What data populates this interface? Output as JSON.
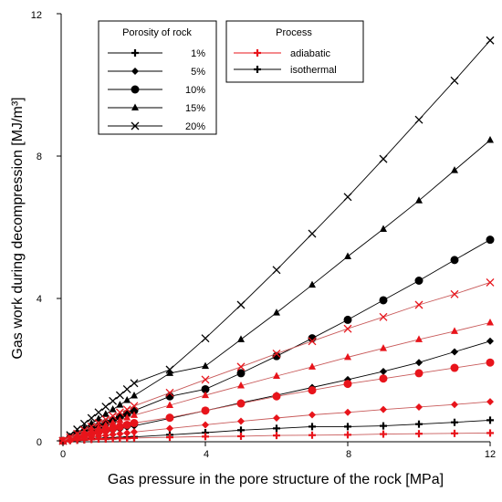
{
  "chart_data": {
    "type": "line",
    "xlabel": "Gas pressure in the pore structure of the rock [MPa]",
    "ylabel": "Gas work during decompression [MJ/m³]",
    "xlim": [
      0,
      12
    ],
    "ylim": [
      0,
      12
    ],
    "x_ticks": [
      "0",
      "4",
      "8",
      "12"
    ],
    "y_ticks": [
      "0",
      "4",
      "8",
      "12"
    ],
    "x": [
      0,
      0.2,
      0.4,
      0.6,
      0.8,
      1.0,
      1.2,
      1.4,
      1.6,
      1.8,
      2.0,
      3,
      4,
      5,
      6,
      7,
      8,
      9,
      10,
      11,
      12
    ],
    "porosity_legend": {
      "title": "Porosity of rock",
      "entries": [
        {
          "label": "1%",
          "marker": "plus"
        },
        {
          "label": "5%",
          "marker": "diamond"
        },
        {
          "label": "10%",
          "marker": "circle"
        },
        {
          "label": "15%",
          "marker": "triangle"
        },
        {
          "label": "20%",
          "marker": "cross"
        }
      ]
    },
    "process_legend": {
      "title": "Process",
      "entries": [
        {
          "label": "adiabatic",
          "color": "#e8141b"
        },
        {
          "label": "isothermal",
          "color": "#000000"
        }
      ]
    },
    "series": [
      {
        "porosity": "1%",
        "process": "isothermal",
        "marker": "plus",
        "color": "#000000",
        "values": [
          0,
          0.01,
          0.02,
          0.03,
          0.05,
          0.06,
          0.07,
          0.08,
          0.09,
          0.1,
          0.11,
          0.17,
          0.23,
          0.3,
          0.35,
          0.4,
          0.4,
          0.42,
          0.47,
          0.52,
          0.58
        ]
      },
      {
        "porosity": "5%",
        "process": "isothermal",
        "marker": "diamond",
        "color": "#000000",
        "values": [
          0,
          0.04,
          0.08,
          0.12,
          0.17,
          0.21,
          0.25,
          0.29,
          0.33,
          0.38,
          0.42,
          0.63,
          0.85,
          1.07,
          1.28,
          1.5,
          1.72,
          1.95,
          2.2,
          2.5,
          2.8
        ]
      },
      {
        "porosity": "10%",
        "process": "isothermal",
        "marker": "circle",
        "color": "#000000",
        "values": [
          0,
          0.08,
          0.16,
          0.24,
          0.33,
          0.41,
          0.5,
          0.58,
          0.67,
          0.76,
          0.85,
          1.25,
          1.45,
          1.9,
          2.38,
          2.88,
          3.4,
          3.95,
          4.5,
          5.08,
          5.65
        ]
      },
      {
        "porosity": "15%",
        "process": "isothermal",
        "marker": "triangle",
        "color": "#000000",
        "values": [
          0,
          0.12,
          0.24,
          0.36,
          0.49,
          0.62,
          0.75,
          0.88,
          1.01,
          1.14,
          1.27,
          1.9,
          2.1,
          2.85,
          3.6,
          4.38,
          5.18,
          5.95,
          6.75,
          7.6,
          8.45
        ]
      },
      {
        "porosity": "20%",
        "process": "isothermal",
        "marker": "cross",
        "color": "#000000",
        "values": [
          0,
          0.16,
          0.32,
          0.48,
          0.64,
          0.8,
          0.96,
          1.12,
          1.28,
          1.45,
          1.62,
          2.0,
          2.88,
          3.82,
          4.8,
          5.82,
          6.85,
          7.92,
          9.02,
          10.12,
          11.25
        ]
      },
      {
        "porosity": "1%",
        "process": "adiabatic",
        "marker": "plus",
        "color": "#e8141b",
        "values": [
          0,
          0.01,
          0.02,
          0.03,
          0.04,
          0.05,
          0.05,
          0.06,
          0.07,
          0.07,
          0.08,
          0.1,
          0.12,
          0.13,
          0.15,
          0.16,
          0.17,
          0.19,
          0.2,
          0.21,
          0.22
        ]
      },
      {
        "porosity": "5%",
        "process": "adiabatic",
        "marker": "diamond",
        "color": "#e8141b",
        "values": [
          0,
          0.03,
          0.05,
          0.08,
          0.1,
          0.13,
          0.15,
          0.18,
          0.2,
          0.22,
          0.25,
          0.35,
          0.45,
          0.55,
          0.64,
          0.73,
          0.8,
          0.88,
          0.95,
          1.02,
          1.1
        ]
      },
      {
        "porosity": "10%",
        "process": "adiabatic",
        "marker": "circle",
        "color": "#e8141b",
        "values": [
          0,
          0.05,
          0.1,
          0.15,
          0.2,
          0.25,
          0.3,
          0.35,
          0.4,
          0.45,
          0.5,
          0.65,
          0.85,
          1.05,
          1.25,
          1.42,
          1.6,
          1.75,
          1.9,
          2.05,
          2.2
        ]
      },
      {
        "porosity": "15%",
        "process": "adiabatic",
        "marker": "triangle",
        "color": "#e8141b",
        "values": [
          0,
          0.07,
          0.15,
          0.22,
          0.3,
          0.37,
          0.44,
          0.51,
          0.58,
          0.65,
          0.72,
          1.0,
          1.28,
          1.55,
          1.82,
          2.08,
          2.35,
          2.6,
          2.85,
          3.08,
          3.32
        ]
      },
      {
        "porosity": "20%",
        "process": "adiabatic",
        "marker": "cross",
        "color": "#e8141b",
        "values": [
          0,
          0.1,
          0.2,
          0.3,
          0.4,
          0.5,
          0.6,
          0.7,
          0.8,
          0.88,
          0.98,
          1.35,
          1.72,
          2.08,
          2.45,
          2.8,
          3.15,
          3.48,
          3.82,
          4.12,
          4.45
        ]
      }
    ]
  }
}
